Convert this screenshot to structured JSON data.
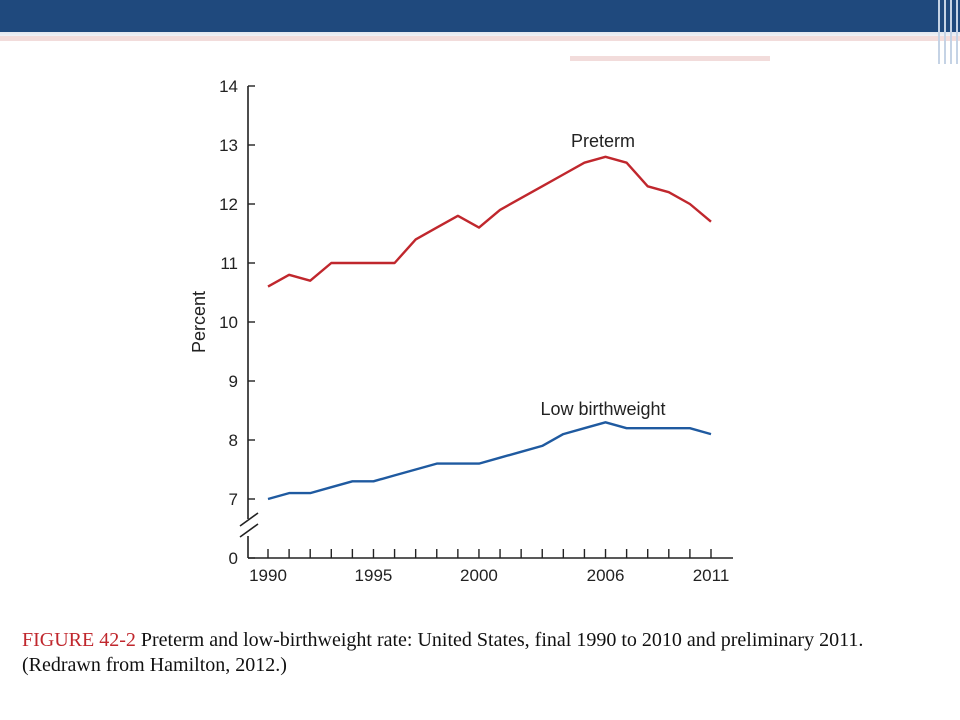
{
  "slide": {
    "banner_color": "#1f497d",
    "accent_color": "#f2dcdb"
  },
  "caption": {
    "label": "FIGURE 42-2",
    "text": " Preterm and low-birthweight rate: United States, final 1990 to 2010 and preliminary 2011. (Redrawn from Hamilton, 2012.)"
  },
  "chart_data": {
    "type": "line",
    "title": "",
    "xlabel": "",
    "ylabel": "Percent",
    "x": [
      1990,
      1991,
      1992,
      1993,
      1994,
      1995,
      1996,
      1997,
      1998,
      1999,
      2000,
      2001,
      2002,
      2003,
      2004,
      2005,
      2006,
      2007,
      2008,
      2009,
      2010,
      2011
    ],
    "x_tick_labels": [
      "1990",
      "1995",
      "2000",
      "2006",
      "2011"
    ],
    "x_tick_values": [
      1990,
      1995,
      2000,
      2006,
      2011
    ],
    "y_ticks": [
      0,
      7,
      8,
      9,
      10,
      11,
      12,
      13,
      14
    ],
    "ylim": [
      0,
      14
    ],
    "axis_break": true,
    "grid": false,
    "series": [
      {
        "name": "Preterm",
        "color": "#c0272d",
        "values": [
          10.6,
          10.8,
          10.7,
          11.0,
          11.0,
          11.0,
          11.0,
          11.4,
          11.6,
          11.8,
          11.6,
          11.9,
          12.1,
          12.3,
          12.5,
          12.7,
          12.8,
          12.7,
          12.3,
          12.2,
          12.0,
          11.7
        ]
      },
      {
        "name": "Low birthweight",
        "color": "#1f5aa0",
        "values": [
          7.0,
          7.1,
          7.1,
          7.2,
          7.3,
          7.3,
          7.4,
          7.5,
          7.6,
          7.6,
          7.6,
          7.7,
          7.8,
          7.9,
          8.1,
          8.2,
          8.3,
          8.2,
          8.2,
          8.2,
          8.2,
          8.1
        ]
      }
    ]
  }
}
